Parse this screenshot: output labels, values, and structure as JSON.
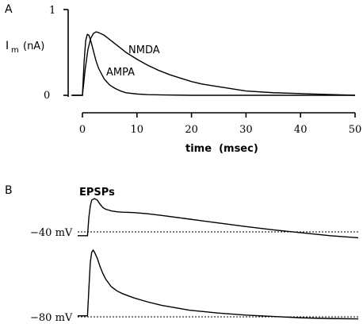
{
  "chart_data": [
    {
      "type": "line",
      "panel_label": "A",
      "ylabel_main": "I",
      "ylabel_sub": "m",
      "ylabel_unit": "(nA)",
      "xlabel": "time  (msec)",
      "xlim": [
        0,
        50
      ],
      "ylim": [
        0,
        1
      ],
      "x_ticks": [
        "0",
        "10",
        "20",
        "30",
        "40",
        "50"
      ],
      "y_ticks": [
        "0",
        "1"
      ],
      "series": [
        {
          "name": "NMDA",
          "x": [
            -2,
            0,
            0.5,
            1,
            1.5,
            2,
            2.5,
            3,
            4,
            5,
            6,
            7,
            8,
            10,
            12,
            14,
            16,
            18,
            20,
            22,
            25,
            28,
            30,
            35,
            40,
            45,
            50
          ],
          "y": [
            0,
            0,
            0.3,
            0.53,
            0.66,
            0.72,
            0.74,
            0.73,
            0.7,
            0.65,
            0.6,
            0.55,
            0.5,
            0.42,
            0.35,
            0.29,
            0.24,
            0.2,
            0.16,
            0.13,
            0.1,
            0.07,
            0.05,
            0.03,
            0.02,
            0.01,
            0.0
          ]
        },
        {
          "name": "AMPA",
          "x": [
            -2,
            0,
            0.3,
            0.6,
            0.9,
            1.2,
            1.6,
            2,
            2.5,
            3,
            4,
            5,
            6,
            7,
            8,
            10,
            12,
            15,
            20,
            30,
            50
          ],
          "y": [
            0,
            0,
            0.38,
            0.64,
            0.71,
            0.7,
            0.62,
            0.52,
            0.4,
            0.31,
            0.19,
            0.12,
            0.08,
            0.05,
            0.03,
            0.015,
            0.008,
            0.004,
            0.0,
            0.0,
            0.0
          ]
        }
      ]
    },
    {
      "type": "line",
      "panel_label": "B",
      "annotation": "EPSPs",
      "traces": [
        {
          "name": "",
          "label": "−40 mV",
          "x": [
            0,
            3.5,
            4,
            4.5,
            5,
            6,
            7,
            8,
            9,
            10,
            12,
            14,
            16,
            20,
            25,
            30,
            40,
            50,
            60,
            70,
            80,
            90,
            100
          ],
          "y": [
            0.1,
            0.1,
            0.55,
            0.82,
            0.96,
            1.0,
            0.96,
            0.86,
            0.78,
            0.74,
            0.7,
            0.68,
            0.67,
            0.66,
            0.63,
            0.59,
            0.5,
            0.41,
            0.32,
            0.24,
            0.17,
            0.1,
            0.05
          ]
        },
        {
          "name": "",
          "label": "−80 mV",
          "x": [
            0,
            3.5,
            4,
            4.5,
            5,
            5.5,
            6,
            7,
            8,
            9,
            10,
            12,
            14,
            16,
            18,
            20,
            25,
            30,
            40,
            50,
            60,
            70,
            80,
            90,
            100
          ],
          "y": [
            0.05,
            0.05,
            0.45,
            0.82,
            0.97,
            1.0,
            0.97,
            0.88,
            0.76,
            0.66,
            0.58,
            0.47,
            0.41,
            0.37,
            0.34,
            0.31,
            0.25,
            0.2,
            0.13,
            0.09,
            0.06,
            0.04,
            0.02,
            0.01,
            0.005
          ]
        }
      ]
    }
  ]
}
